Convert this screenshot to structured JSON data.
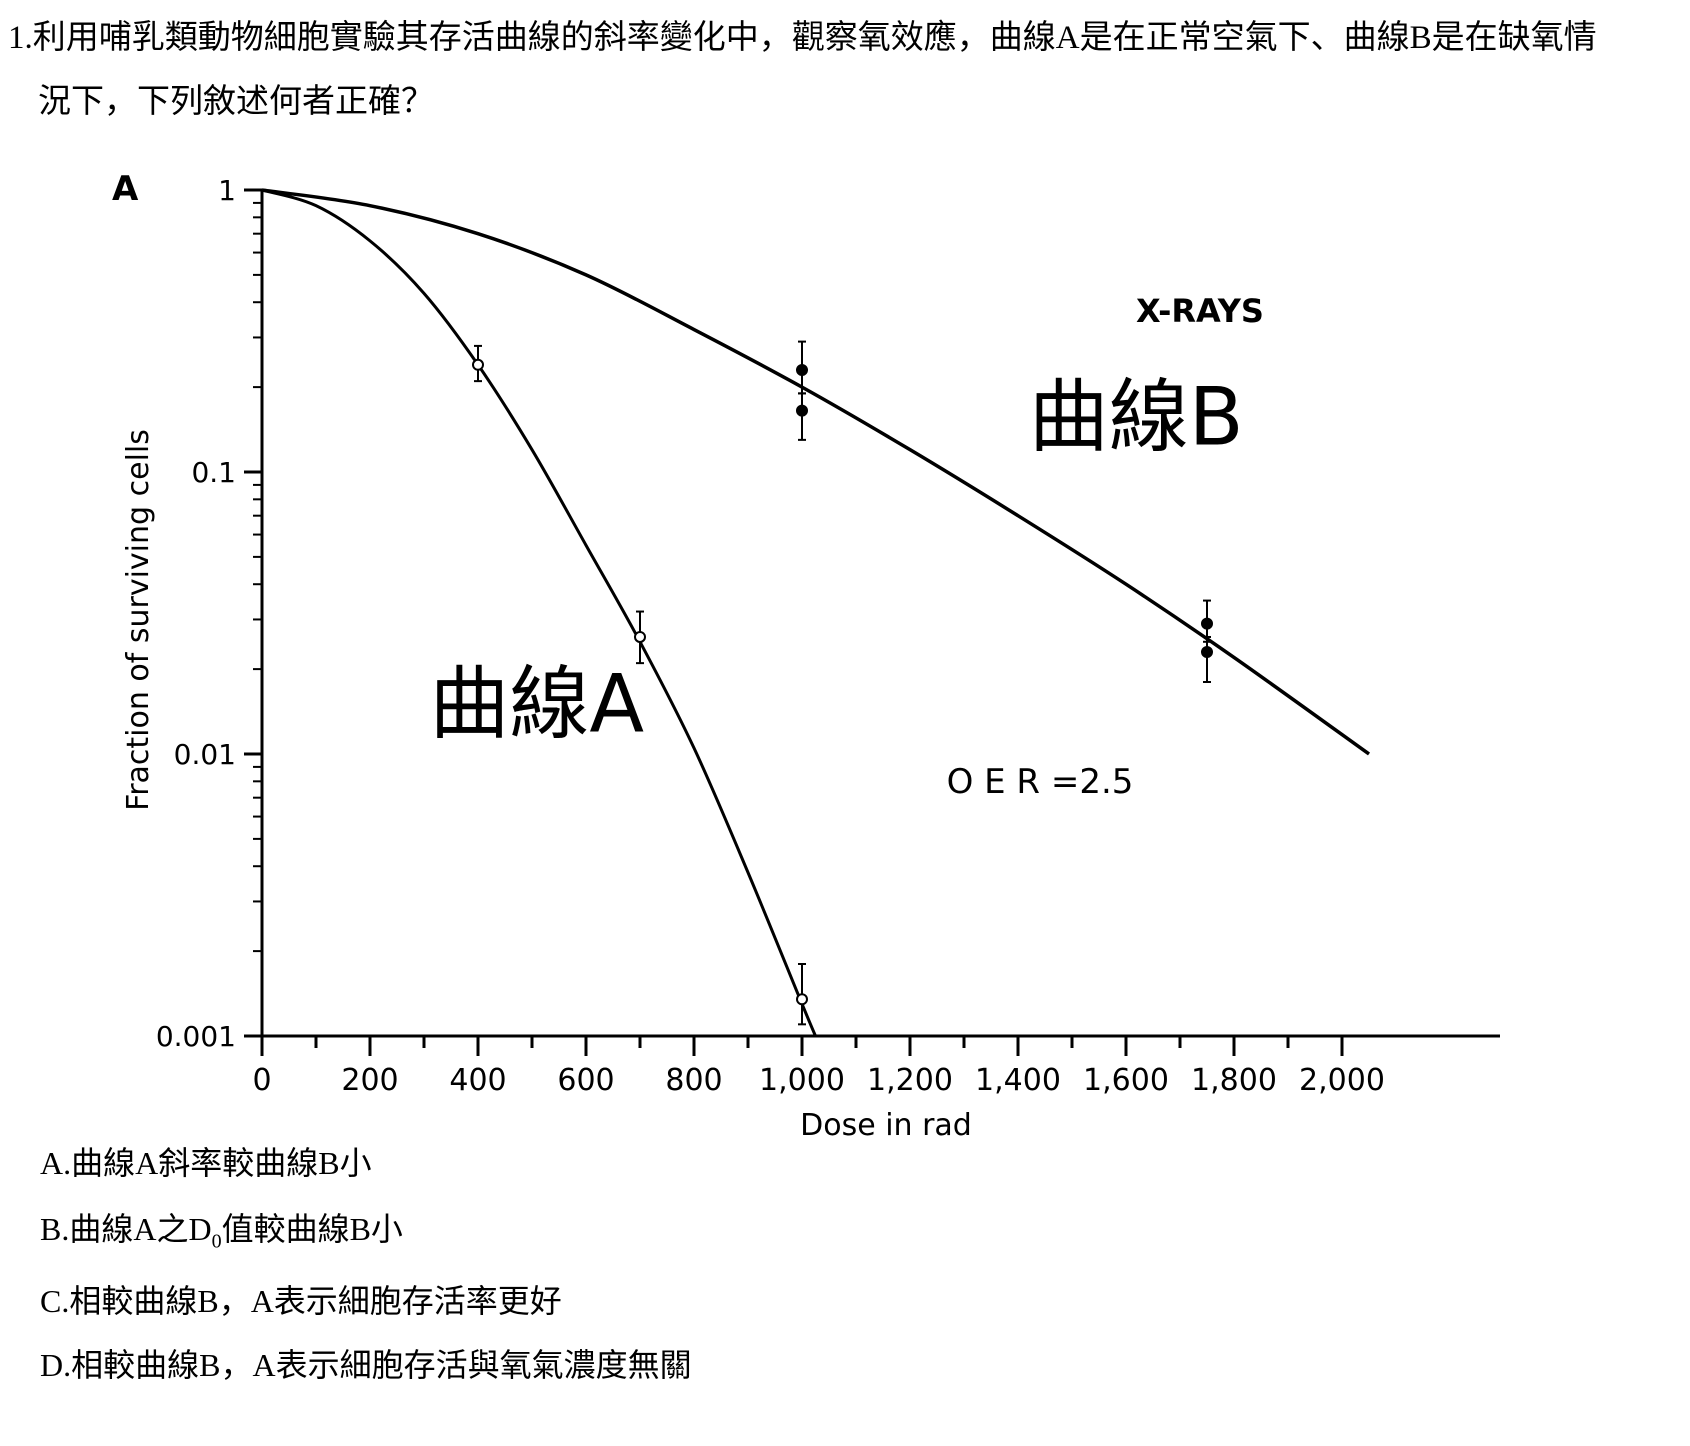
{
  "question": {
    "number": "1.",
    "line1": "利用哺乳類動物細胞實驗其存活曲線的斜率變化中，觀察氧效應，曲線A是在正常空氣下、曲線B是在缺氧情",
    "line2": "況下，下列敘述何者正確？"
  },
  "chart_data": {
    "type": "line",
    "panel_label": "A",
    "xlabel": "Dose in rad",
    "ylabel": "Fraction of surviving cells",
    "xlim": [
      0,
      2100
    ],
    "ylim": [
      0.001,
      1
    ],
    "y_scale": "log",
    "x_ticks": [
      "0",
      "200",
      "400",
      "600",
      "800",
      "1,000",
      "1,200",
      "1,400",
      "1,600",
      "1,800",
      "2,000"
    ],
    "x_tick_values": [
      0,
      200,
      400,
      600,
      800,
      1000,
      1200,
      1400,
      1600,
      1800,
      2000
    ],
    "y_ticks": [
      "1",
      "0.1",
      "0.01",
      "0.001"
    ],
    "y_tick_values": [
      1,
      0.1,
      0.01,
      0.001
    ],
    "annotations": {
      "radiation": "X-RAYS",
      "oer": "O E R =2.5"
    },
    "series": [
      {
        "name": "曲線A",
        "curve_x": [
          0,
          100,
          200,
          300,
          400,
          500,
          600,
          700,
          800,
          900,
          1000,
          1025
        ],
        "curve_y": [
          1,
          0.88,
          0.66,
          0.43,
          0.24,
          0.12,
          0.055,
          0.025,
          0.0105,
          0.0038,
          0.0013,
          0.001
        ],
        "points": [
          {
            "x": 400,
            "y": 0.24,
            "err_low": 0.21,
            "err_high": 0.28,
            "marker": "open"
          },
          {
            "x": 700,
            "y": 0.026,
            "err_low": 0.021,
            "err_high": 0.032,
            "marker": "open"
          },
          {
            "x": 1000,
            "y": 0.00135,
            "err_low": 0.0011,
            "err_high": 0.0018,
            "marker": "open"
          }
        ]
      },
      {
        "name": "曲線B",
        "curve_x": [
          0,
          200,
          400,
          600,
          800,
          1000,
          1200,
          1400,
          1600,
          1800,
          2050
        ],
        "curve_y": [
          1,
          0.88,
          0.7,
          0.5,
          0.32,
          0.2,
          0.12,
          0.07,
          0.04,
          0.022,
          0.01
        ],
        "points": [
          {
            "x": 1000,
            "y": 0.23,
            "err_low": 0.19,
            "err_high": 0.29,
            "marker": "filled"
          },
          {
            "x": 1000,
            "y": 0.165,
            "err_low": 0.13,
            "err_high": 0.19,
            "marker": "filled"
          },
          {
            "x": 1750,
            "y": 0.029,
            "err_low": 0.025,
            "err_high": 0.035,
            "marker": "filled"
          },
          {
            "x": 1750,
            "y": 0.023,
            "err_low": 0.018,
            "err_high": 0.026,
            "marker": "filled"
          }
        ]
      }
    ],
    "curve_labels": [
      {
        "text": "曲線A",
        "x": 310,
        "y": 0.012
      },
      {
        "text": "曲線B",
        "x": 1420,
        "y": 0.125
      }
    ]
  },
  "options": {
    "a": "A.曲線A斜率較曲線B小",
    "b_prefix": "B.曲線A之D",
    "b_sub": "0",
    "b_suffix": "值較曲線B小",
    "c": "C.相較曲線B，A表示細胞存活率更好",
    "d": "D.相較曲線B，A表示細胞存活與氧氣濃度無關"
  }
}
